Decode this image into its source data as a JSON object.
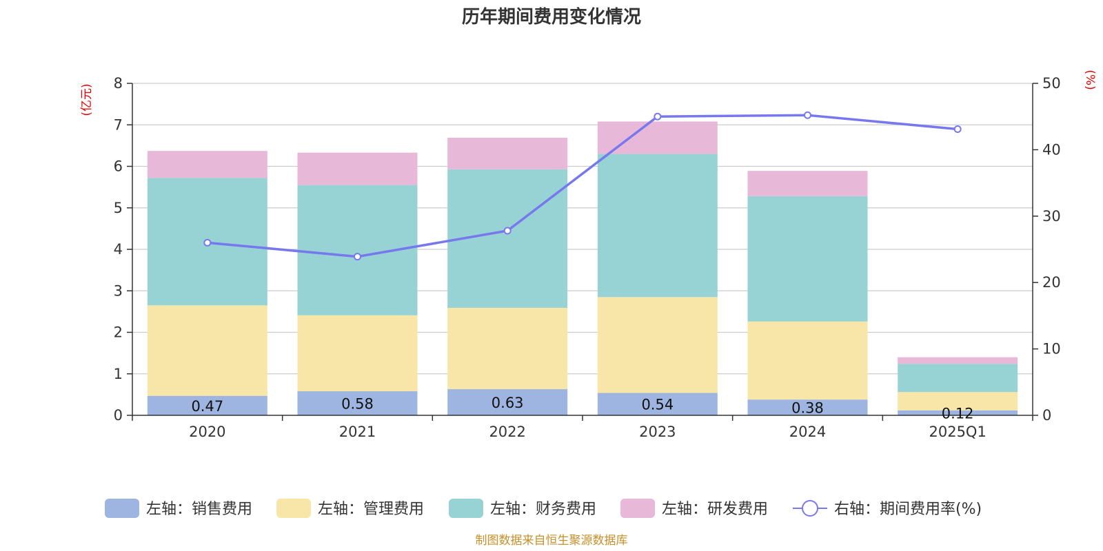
{
  "chart_data": {
    "type": "bar",
    "stacked": true,
    "title": "历年期间费用变化情况",
    "categories": [
      "2020",
      "2021",
      "2022",
      "2023",
      "2024",
      "2025Q1"
    ],
    "left_axis": {
      "unit_label": "(亿元)",
      "ylim": [
        0,
        8
      ],
      "ticks": [
        "0",
        "1",
        "2",
        "3",
        "4",
        "5",
        "6",
        "7",
        "8"
      ]
    },
    "right_axis": {
      "unit_label": "(%)",
      "ylim": [
        0,
        50
      ],
      "ticks": [
        "0",
        "10",
        "20",
        "30",
        "40",
        "50"
      ]
    },
    "grid": true,
    "legend_position": "bottom",
    "series": [
      {
        "name": "左轴：销售费用",
        "axis": "left",
        "color": "#9db5e0",
        "values": [
          0.47,
          0.58,
          0.63,
          0.54,
          0.38,
          0.12
        ],
        "value_labels": [
          "0.47",
          "0.58",
          "0.63",
          "0.54",
          "0.38",
          "0.12"
        ]
      },
      {
        "name": "左轴：管理费用",
        "axis": "left",
        "color": "#f7e6a7",
        "values": [
          2.18,
          1.83,
          1.96,
          2.31,
          1.88,
          0.44
        ]
      },
      {
        "name": "左轴：财务费用",
        "axis": "left",
        "color": "#97d3d4",
        "values": [
          3.07,
          3.14,
          3.34,
          3.45,
          3.02,
          0.68
        ]
      },
      {
        "name": "左轴：研发费用",
        "axis": "left",
        "color": "#e8b8d8",
        "values": [
          0.65,
          0.78,
          0.76,
          0.78,
          0.61,
          0.16
        ]
      }
    ],
    "line_series": {
      "name": "右轴：期间费用率(%)",
      "axis": "right",
      "color": "#7777ee",
      "values": [
        26.0,
        23.9,
        27.8,
        45.0,
        45.2,
        43.1
      ]
    },
    "source_note": "制图数据来自恒生聚源数据库"
  }
}
